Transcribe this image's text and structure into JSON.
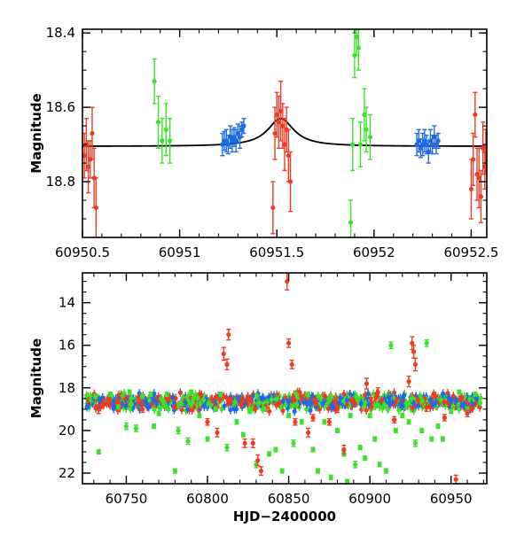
{
  "chart_data": [
    {
      "type": "scatter",
      "panel": "top",
      "title": "",
      "xlabel": "",
      "ylabel": "Magnitude",
      "xlim": [
        60950.5,
        60952.58
      ],
      "ylim": [
        18.95,
        18.39
      ],
      "y_inverted": true,
      "x_ticks": [
        60950.5,
        60951,
        60951.5,
        60952,
        60952.5
      ],
      "x_tick_labels": [
        "60950.5",
        "60951",
        "60951.5",
        "60952",
        "60952.5"
      ],
      "y_ticks": [
        18.4,
        18.6,
        18.8
      ],
      "y_tick_labels": [
        "18.4",
        "18.6",
        "18.8"
      ],
      "model_curve": {
        "name": "model",
        "color": "#000000",
        "baseline": 18.705,
        "peak_mag": 18.63,
        "t0": 60951.52,
        "tE": 0.2
      },
      "series": [
        {
          "name": "red",
          "color": "#ee3b24",
          "points": [
            [
              60950.51,
              18.73,
              0.06
            ],
            [
              60950.52,
              18.7,
              0.07
            ],
            [
              60950.53,
              18.76,
              0.07
            ],
            [
              60950.54,
              18.74,
              0.05
            ],
            [
              60950.55,
              18.67,
              0.07
            ],
            [
              60950.56,
              18.79,
              0.08
            ],
            [
              60950.57,
              18.87,
              0.08
            ],
            [
              60951.48,
              18.87,
              0.07
            ],
            [
              60951.49,
              18.67,
              0.07
            ],
            [
              60951.5,
              18.62,
              0.06
            ],
            [
              60951.51,
              18.64,
              0.07
            ],
            [
              60951.52,
              18.61,
              0.08
            ],
            [
              60951.53,
              18.65,
              0.06
            ],
            [
              60951.54,
              18.7,
              0.07
            ],
            [
              60951.55,
              18.66,
              0.06
            ],
            [
              60951.56,
              18.73,
              0.07
            ],
            [
              60951.57,
              18.8,
              0.08
            ],
            [
              60952.5,
              18.82,
              0.08
            ],
            [
              60952.51,
              18.74,
              0.07
            ],
            [
              60952.52,
              18.62,
              0.06
            ],
            [
              60952.53,
              18.78,
              0.07
            ],
            [
              60952.54,
              18.79,
              0.08
            ],
            [
              60952.55,
              18.84,
              0.07
            ],
            [
              60952.56,
              18.71,
              0.07
            ],
            [
              60952.57,
              18.76,
              0.06
            ],
            [
              60952.575,
              18.72,
              0.06
            ]
          ]
        },
        {
          "name": "green",
          "color": "#3ce12a",
          "points": [
            [
              60950.87,
              18.53,
              0.06
            ],
            [
              60950.89,
              18.64,
              0.07
            ],
            [
              60950.91,
              18.69,
              0.06
            ],
            [
              60950.93,
              18.66,
              0.07
            ],
            [
              60950.95,
              18.69,
              0.06
            ],
            [
              60951.88,
              18.91,
              0.06
            ],
            [
              60951.89,
              18.7,
              0.07
            ],
            [
              60951.9,
              18.46,
              0.06
            ],
            [
              60951.91,
              18.41,
              0.05
            ],
            [
              60951.92,
              18.44,
              0.06
            ],
            [
              60951.93,
              18.7,
              0.06
            ],
            [
              60951.95,
              18.62,
              0.07
            ],
            [
              60951.96,
              18.66,
              0.06
            ],
            [
              60951.98,
              18.68,
              0.06
            ]
          ]
        },
        {
          "name": "blue",
          "color": "#1f6ae6",
          "points": [
            [
              60951.22,
              18.7,
              0.03
            ],
            [
              60951.23,
              18.69,
              0.025
            ],
            [
              60951.24,
              18.69,
              0.03
            ],
            [
              60951.25,
              18.7,
              0.025
            ],
            [
              60951.26,
              18.68,
              0.03
            ],
            [
              60951.27,
              18.69,
              0.03
            ],
            [
              60951.28,
              18.68,
              0.025
            ],
            [
              60951.29,
              18.69,
              0.03
            ],
            [
              60951.3,
              18.67,
              0.025
            ],
            [
              60951.31,
              18.68,
              0.03
            ],
            [
              60951.32,
              18.66,
              0.02
            ],
            [
              60951.33,
              18.65,
              0.02
            ],
            [
              60952.22,
              18.7,
              0.03
            ],
            [
              60952.23,
              18.69,
              0.03
            ],
            [
              60952.24,
              18.71,
              0.025
            ],
            [
              60952.25,
              18.7,
              0.03
            ],
            [
              60952.26,
              18.69,
              0.03
            ],
            [
              60952.27,
              18.7,
              0.025
            ],
            [
              60952.28,
              18.72,
              0.03
            ],
            [
              60952.29,
              18.69,
              0.03
            ],
            [
              60952.3,
              18.7,
              0.025
            ],
            [
              60952.31,
              18.68,
              0.03
            ],
            [
              60952.32,
              18.7,
              0.025
            ],
            [
              60952.33,
              18.69,
              0.02
            ]
          ]
        }
      ]
    },
    {
      "type": "scatter",
      "panel": "bottom",
      "title": "",
      "xlabel": "HJD−2400000",
      "ylabel": "Magnitude",
      "xlim": [
        60723,
        60972
      ],
      "ylim": [
        22.5,
        12.6
      ],
      "y_inverted": true,
      "x_ticks": [
        60750,
        60800,
        60850,
        60900,
        60950
      ],
      "x_tick_labels": [
        "60750",
        "60800",
        "60850",
        "60900",
        "60950"
      ],
      "y_ticks": [
        14,
        16,
        18,
        20,
        22
      ],
      "y_tick_labels": [
        "14",
        "16",
        "18",
        "20",
        "22"
      ],
      "series": [
        {
          "name": "green",
          "color": "#3ce12a",
          "points": [
            [
              60731,
              18.4,
              0.1
            ],
            [
              60733,
              21.0,
              0.1
            ],
            [
              60740,
              18.3,
              0.1
            ],
            [
              60745,
              18.9,
              0.1
            ],
            [
              60750,
              19.8,
              0.15
            ],
            [
              60752,
              18.2,
              0.1
            ],
            [
              60756,
              19.9,
              0.15
            ],
            [
              60760,
              18.4,
              0.1
            ],
            [
              60765,
              18.3,
              0.1
            ],
            [
              60767,
              19.8,
              0.1
            ],
            [
              60770,
              19.2,
              0.1
            ],
            [
              60775,
              18.3,
              0.1
            ],
            [
              60780,
              21.9,
              0.1
            ],
            [
              60782,
              20.0,
              0.15
            ],
            [
              60788,
              20.5,
              0.15
            ],
            [
              60790,
              18.2,
              0.1
            ],
            [
              60795,
              19.3,
              0.1
            ],
            [
              60800,
              20.4,
              0.1
            ],
            [
              60805,
              19.0,
              0.1
            ],
            [
              60808,
              18.3,
              0.1
            ],
            [
              60812,
              20.8,
              0.15
            ],
            [
              60818,
              19.6,
              0.1
            ],
            [
              60822,
              20.2,
              0.1
            ],
            [
              60826,
              19.1,
              0.1
            ],
            [
              60830,
              21.6,
              0.15
            ],
            [
              60835,
              19.0,
              0.1
            ],
            [
              60838,
              21.1,
              0.1
            ],
            [
              60842,
              20.9,
              0.1
            ],
            [
              60846,
              21.9,
              0.1
            ],
            [
              60850,
              19.3,
              0.1
            ],
            [
              60853,
              20.6,
              0.15
            ],
            [
              60858,
              19.6,
              0.1
            ],
            [
              60862,
              18.3,
              0.1
            ],
            [
              60865,
              20.9,
              0.1
            ],
            [
              60868,
              21.9,
              0.1
            ],
            [
              60872,
              19.6,
              0.1
            ],
            [
              60876,
              22.2,
              0.1
            ],
            [
              60880,
              20.0,
              0.1
            ],
            [
              60884,
              21.1,
              0.1
            ],
            [
              60886,
              22.4,
              0.1
            ],
            [
              60888,
              19.3,
              0.1
            ],
            [
              60891,
              21.6,
              0.15
            ],
            [
              60894,
              20.8,
              0.1
            ],
            [
              60897,
              21.3,
              0.1
            ],
            [
              60900,
              19.3,
              0.1
            ],
            [
              60903,
              20.4,
              0.1
            ],
            [
              60906,
              21.6,
              0.1
            ],
            [
              60910,
              21.9,
              0.1
            ],
            [
              60913,
              16.0,
              0.15
            ],
            [
              60916,
              20.0,
              0.1
            ],
            [
              60920,
              19.3,
              0.1
            ],
            [
              60924,
              19.6,
              0.1
            ],
            [
              60928,
              20.6,
              0.15
            ],
            [
              60932,
              20.0,
              0.1
            ],
            [
              60935,
              15.9,
              0.15
            ],
            [
              60938,
              20.4,
              0.1
            ],
            [
              60942,
              19.8,
              0.1
            ],
            [
              60945,
              20.4,
              0.1
            ],
            [
              60950,
              19.1,
              0.1
            ],
            [
              60955,
              18.2,
              0.1
            ],
            [
              60960,
              19.0,
              0.1
            ],
            [
              60965,
              18.3,
              0.1
            ]
          ]
        },
        {
          "name": "red",
          "color": "#ee3b24",
          "points": [
            [
              60733,
              19.0,
              0.2
            ],
            [
              60760,
              19.0,
              0.15
            ],
            [
              60780,
              18.9,
              0.1
            ],
            [
              60800,
              19.6,
              0.15
            ],
            [
              60806,
              20.1,
              0.2
            ],
            [
              60810,
              16.4,
              0.3
            ],
            [
              60812,
              16.9,
              0.25
            ],
            [
              60813,
              15.5,
              0.25
            ],
            [
              60823,
              20.6,
              0.2
            ],
            [
              60828,
              20.6,
              0.2
            ],
            [
              60831,
              21.4,
              0.25
            ],
            [
              60833,
              21.9,
              0.2
            ],
            [
              60849,
              13.0,
              0.4
            ],
            [
              60850,
              15.9,
              0.2
            ],
            [
              60852,
              16.9,
              0.2
            ],
            [
              60854,
              19.6,
              0.15
            ],
            [
              60862,
              20.1,
              0.2
            ],
            [
              60865,
              19.4,
              0.15
            ],
            [
              60875,
              19.6,
              0.15
            ],
            [
              60880,
              19.0,
              0.15
            ],
            [
              60884,
              20.9,
              0.2
            ],
            [
              60898,
              17.8,
              0.25
            ],
            [
              60905,
              18.2,
              0.2
            ],
            [
              60915,
              19.5,
              0.15
            ],
            [
              60924,
              17.7,
              0.25
            ],
            [
              60926,
              15.9,
              0.3
            ],
            [
              60927,
              16.3,
              0.3
            ],
            [
              60928,
              16.9,
              0.3
            ],
            [
              60935,
              18.9,
              0.2
            ],
            [
              60946,
              19.4,
              0.15
            ],
            [
              60953,
              22.3,
              0.2
            ],
            [
              60960,
              19.2,
              0.15
            ]
          ]
        }
      ],
      "dense_band": {
        "x_range": [
          60725,
          60969
        ],
        "center_mag": 18.65,
        "spread": 0.22,
        "colors": [
          "#1f6ae6",
          "#3ce12a",
          "#ee3b24"
        ]
      }
    }
  ]
}
